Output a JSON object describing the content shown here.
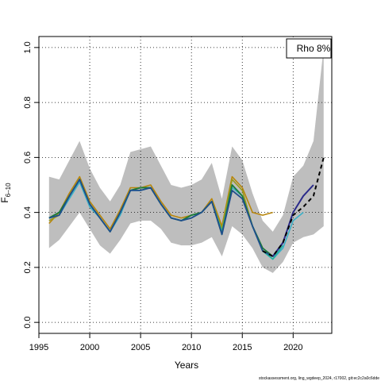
{
  "chart_data": {
    "type": "line",
    "title": "",
    "xlabel": "Years",
    "ylabel_main": "F",
    "ylabel_sub": "6–10",
    "xlim": [
      1995,
      2023.8
    ],
    "ylim": [
      -0.04,
      1.04
    ],
    "x_ticks": [
      1995,
      2000,
      2005,
      2010,
      2015,
      2020
    ],
    "y_ticks": [
      0.0,
      0.2,
      0.4,
      0.6,
      0.8,
      1.0
    ],
    "y_tick_labels": [
      "0.0",
      "0.2",
      "0.4",
      "0.6",
      "0.8",
      "1.0"
    ],
    "grid": true,
    "legend": {
      "placement": "top-right",
      "text": "Rho 8%"
    },
    "footnote": "stockassessment.org, ling_wgdeep_2024, r17002, git:ec2c2a0c6dde",
    "confidence_band": {
      "color": "#bebebe",
      "x": [
        1996,
        1997,
        1998,
        1999,
        2000,
        2001,
        2002,
        2003,
        2004,
        2005,
        2006,
        2007,
        2008,
        2009,
        2010,
        2011,
        2012,
        2013,
        2014,
        2015,
        2016,
        2017,
        2018,
        2019,
        2020,
        2021,
        2022,
        2023
      ],
      "lower": [
        0.27,
        0.3,
        0.35,
        0.4,
        0.34,
        0.28,
        0.25,
        0.3,
        0.36,
        0.37,
        0.37,
        0.34,
        0.29,
        0.28,
        0.28,
        0.29,
        0.31,
        0.24,
        0.35,
        0.32,
        0.27,
        0.2,
        0.18,
        0.22,
        0.29,
        0.31,
        0.32,
        0.35
      ],
      "upper": [
        0.53,
        0.52,
        0.59,
        0.66,
        0.56,
        0.49,
        0.44,
        0.5,
        0.62,
        0.63,
        0.64,
        0.57,
        0.5,
        0.49,
        0.5,
        0.52,
        0.58,
        0.45,
        0.64,
        0.59,
        0.47,
        0.37,
        0.33,
        0.39,
        0.53,
        0.57,
        0.66,
        1.0
      ]
    },
    "series": [
      {
        "color": "#b8860b",
        "width": 1.6,
        "dash": "",
        "x": [
          1996,
          1997,
          1998,
          1999,
          2000,
          2001,
          2002,
          2003,
          2004,
          2005,
          2006,
          2007,
          2008,
          2009,
          2010,
          2011,
          2012,
          2013,
          2014,
          2015,
          2016,
          2017,
          2018
        ],
        "values": [
          0.36,
          0.4,
          0.47,
          0.53,
          0.44,
          0.39,
          0.34,
          0.41,
          0.49,
          0.49,
          0.5,
          0.44,
          0.39,
          0.38,
          0.39,
          0.4,
          0.45,
          0.35,
          0.53,
          0.49,
          0.4,
          0.39,
          0.4
        ]
      },
      {
        "color": "#9a9a1c",
        "width": 1.6,
        "dash": "",
        "x": [
          1996,
          1997,
          1998,
          1999,
          2000,
          2001,
          2002,
          2003,
          2004,
          2005,
          2006,
          2007,
          2008,
          2009,
          2010,
          2011,
          2012,
          2013,
          2014,
          2015,
          2016,
          2017
        ],
        "values": [
          0.37,
          0.39,
          0.46,
          0.52,
          0.43,
          0.38,
          0.33,
          0.4,
          0.48,
          0.49,
          0.49,
          0.43,
          0.38,
          0.37,
          0.39,
          0.4,
          0.44,
          0.34,
          0.52,
          0.48,
          0.35,
          0.27
        ]
      },
      {
        "color": "#3ab0c8",
        "width": 1.6,
        "dash": "",
        "x": [
          1996,
          1997,
          1998,
          1999,
          2000,
          2001,
          2002,
          2003,
          2004,
          2005,
          2006,
          2007,
          2008,
          2009,
          2010,
          2011,
          2012,
          2013,
          2014,
          2015,
          2016,
          2017,
          2018,
          2019,
          2020,
          2021
        ],
        "values": [
          0.38,
          0.39,
          0.45,
          0.51,
          0.42,
          0.38,
          0.33,
          0.39,
          0.48,
          0.48,
          0.49,
          0.43,
          0.38,
          0.37,
          0.38,
          0.4,
          0.44,
          0.33,
          0.49,
          0.46,
          0.35,
          0.26,
          0.23,
          0.27,
          0.37,
          0.4
        ]
      },
      {
        "color": "#20b2a0",
        "width": 1.6,
        "dash": "",
        "x": [
          1996,
          1997,
          1998,
          1999,
          2000,
          2001,
          2002,
          2003,
          2004,
          2005,
          2006,
          2007,
          2008,
          2009,
          2010,
          2011,
          2012,
          2013,
          2014,
          2015,
          2016,
          2017,
          2018,
          2019
        ],
        "values": [
          0.38,
          0.4,
          0.46,
          0.52,
          0.43,
          0.38,
          0.33,
          0.4,
          0.48,
          0.49,
          0.49,
          0.43,
          0.38,
          0.37,
          0.39,
          0.4,
          0.44,
          0.33,
          0.5,
          0.46,
          0.35,
          0.26,
          0.23,
          0.28
        ]
      },
      {
        "color": "#1a7a3a",
        "width": 1.8,
        "dash": "",
        "x": [
          1996,
          1997,
          1998,
          1999,
          2000,
          2001,
          2002,
          2003,
          2004,
          2005,
          2006,
          2007,
          2008,
          2009,
          2010,
          2011,
          2012,
          2013,
          2014,
          2015,
          2016,
          2017,
          2018,
          2019
        ],
        "values": [
          0.38,
          0.4,
          0.46,
          0.52,
          0.43,
          0.38,
          0.33,
          0.4,
          0.48,
          0.49,
          0.49,
          0.43,
          0.38,
          0.37,
          0.39,
          0.4,
          0.44,
          0.32,
          0.5,
          0.46,
          0.35,
          0.27,
          0.24,
          0.29
        ]
      },
      {
        "color": "#1f4e8c",
        "width": 1.8,
        "dash": "",
        "x": [
          1996,
          1997,
          1998,
          1999,
          2000,
          2001,
          2002,
          2003,
          2004,
          2005,
          2006,
          2007,
          2008,
          2009,
          2010,
          2011,
          2012,
          2013,
          2014,
          2015,
          2016,
          2017,
          2018,
          2019
        ],
        "values": [
          0.38,
          0.39,
          0.46,
          0.52,
          0.43,
          0.38,
          0.33,
          0.4,
          0.48,
          0.48,
          0.49,
          0.43,
          0.38,
          0.37,
          0.38,
          0.4,
          0.44,
          0.32,
          0.48,
          0.45,
          0.35,
          0.26,
          0.24,
          0.29
        ]
      },
      {
        "color": "#2a2a8a",
        "width": 2.0,
        "dash": "",
        "x": [
          2018,
          2019,
          2020,
          2021,
          2022
        ],
        "values": [
          0.24,
          0.29,
          0.4,
          0.46,
          0.5
        ]
      },
      {
        "color": "#000000",
        "width": 2.0,
        "dash": "5,4",
        "x": [
          2017,
          2018,
          2019,
          2020,
          2021,
          2022,
          2023
        ],
        "values": [
          0.26,
          0.24,
          0.29,
          0.39,
          0.42,
          0.46,
          0.6
        ]
      }
    ]
  }
}
